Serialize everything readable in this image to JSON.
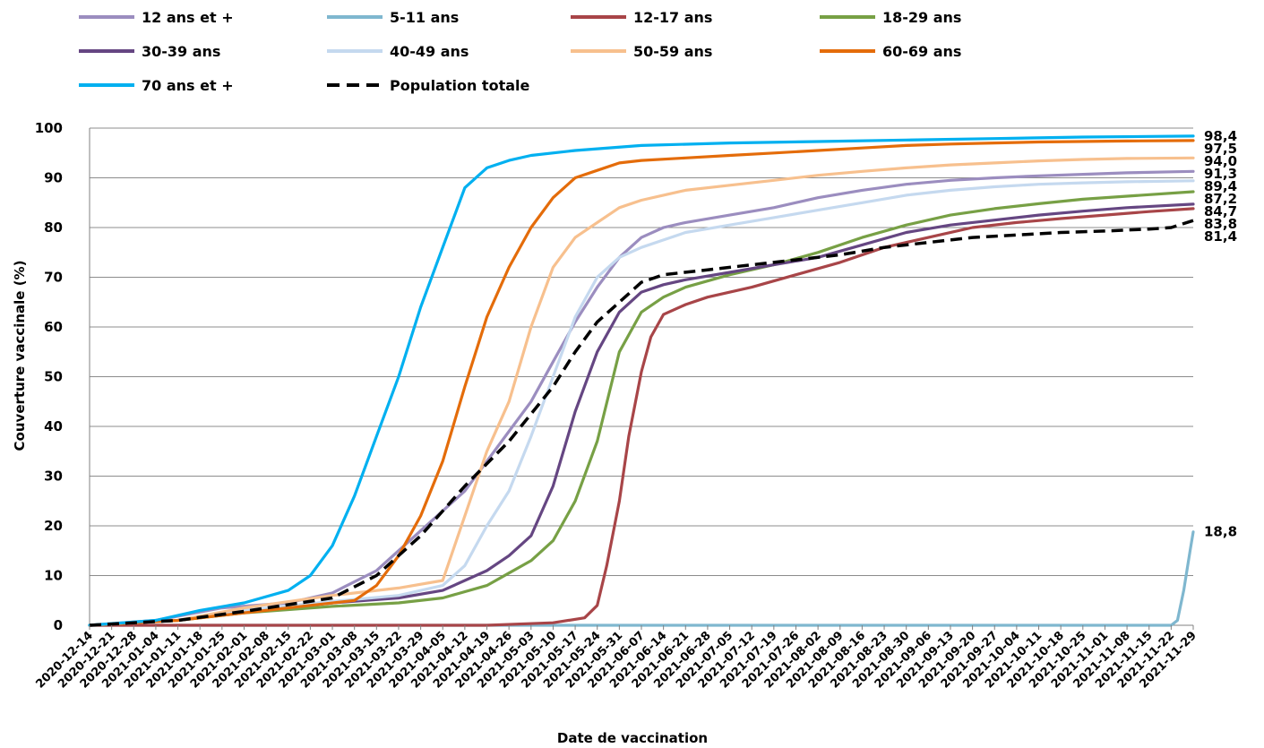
{
  "chart_data": {
    "type": "line",
    "title": "",
    "xlabel": "Date de vaccination",
    "ylabel": "Couverture vaccinale  (%)",
    "ylim": [
      0,
      100
    ],
    "y_ticks": [
      "0",
      "10",
      "20",
      "30",
      "40",
      "50",
      "60",
      "70",
      "80",
      "90",
      "100"
    ],
    "grid": "horizontal",
    "legend_position": "top",
    "x_ticks": [
      "2020-12-14",
      "2020-12-21",
      "2020-12-28",
      "2021-01-04",
      "2021-01-11",
      "2021-01-18",
      "2021-01-25",
      "2021-02-01",
      "2021-02-08",
      "2021-02-15",
      "2021-02-22",
      "2021-03-01",
      "2021-03-08",
      "2021-03-15",
      "2021-03-22",
      "2021-03-29",
      "2021-04-05",
      "2021-04-12",
      "2021-04-19",
      "2021-04-26",
      "2021-05-03",
      "2021-05-10",
      "2021-05-17",
      "2021-05-24",
      "2021-05-31",
      "2021-06-07",
      "2021-06-14",
      "2021-06-21",
      "2021-06-28",
      "2021-07-05",
      "2021-07-12",
      "2021-07-19",
      "2021-07-26",
      "2021-08-02",
      "2021-08-09",
      "2021-08-16",
      "2021-08-23",
      "2021-08-30",
      "2021-09-06",
      "2021-09-13",
      "2021-09-20",
      "2021-09-27",
      "2021-10-04",
      "2021-10-11",
      "2021-10-18",
      "2021-10-25",
      "2021-11-01",
      "2021-11-08",
      "2021-11-15",
      "2021-11-22",
      "2021-11-29"
    ],
    "series": [
      {
        "name": "12 ans et +",
        "color": "#9B8DBF",
        "dash": false,
        "end_label": "91,3",
        "x": [
          "2020-12-14",
          "2021-01-04",
          "2021-01-25",
          "2021-02-15",
          "2021-03-01",
          "2021-03-15",
          "2021-03-29",
          "2021-04-12",
          "2021-04-19",
          "2021-04-26",
          "2021-05-03",
          "2021-05-10",
          "2021-05-17",
          "2021-05-24",
          "2021-05-31",
          "2021-06-07",
          "2021-06-14",
          "2021-06-21",
          "2021-07-05",
          "2021-07-19",
          "2021-08-02",
          "2021-08-16",
          "2021-08-30",
          "2021-09-13",
          "2021-09-27",
          "2021-10-11",
          "2021-10-25",
          "2021-11-08",
          "2021-11-22",
          "2021-11-29"
        ],
        "y": [
          0,
          1,
          3.5,
          4.5,
          6.5,
          11,
          19,
          27,
          33,
          39,
          45,
          53,
          61,
          68,
          74,
          78,
          80,
          81,
          82.5,
          84,
          86,
          87.5,
          88.7,
          89.5,
          90,
          90.4,
          90.7,
          91,
          91.2,
          91.3
        ]
      },
      {
        "name": "5-11 ans",
        "color": "#7FB7CF",
        "dash": false,
        "end_label": "18,8",
        "x": [
          "2020-12-14",
          "2021-11-22",
          "2021-11-24",
          "2021-11-26",
          "2021-11-28",
          "2021-11-29"
        ],
        "y": [
          0,
          0,
          1,
          7,
          15,
          18.8
        ]
      },
      {
        "name": "12-17 ans",
        "color": "#A84548",
        "dash": false,
        "end_label": "83,8",
        "x": [
          "2020-12-14",
          "2021-04-19",
          "2021-05-10",
          "2021-05-20",
          "2021-05-24",
          "2021-05-27",
          "2021-05-31",
          "2021-06-03",
          "2021-06-07",
          "2021-06-10",
          "2021-06-14",
          "2021-06-21",
          "2021-06-28",
          "2021-07-12",
          "2021-07-26",
          "2021-08-09",
          "2021-08-23",
          "2021-09-06",
          "2021-09-20",
          "2021-10-04",
          "2021-10-18",
          "2021-11-01",
          "2021-11-15",
          "2021-11-29"
        ],
        "y": [
          0,
          0,
          0.5,
          1.5,
          4,
          12,
          25,
          38,
          51,
          58,
          62.5,
          64.5,
          66,
          68,
          70.5,
          73,
          76,
          78,
          80,
          81,
          81.8,
          82.5,
          83.2,
          83.8
        ]
      },
      {
        "name": "18-29 ans",
        "color": "#77A045",
        "dash": false,
        "end_label": "87,2",
        "x": [
          "2020-12-14",
          "2021-01-11",
          "2021-02-01",
          "2021-03-01",
          "2021-03-22",
          "2021-04-05",
          "2021-04-19",
          "2021-04-26",
          "2021-05-03",
          "2021-05-10",
          "2021-05-17",
          "2021-05-24",
          "2021-05-31",
          "2021-06-07",
          "2021-06-14",
          "2021-06-21",
          "2021-07-05",
          "2021-07-19",
          "2021-08-02",
          "2021-08-16",
          "2021-08-30",
          "2021-09-13",
          "2021-09-27",
          "2021-10-11",
          "2021-10-25",
          "2021-11-08",
          "2021-11-29"
        ],
        "y": [
          0,
          1,
          2.5,
          3.8,
          4.5,
          5.5,
          8,
          10.5,
          13,
          17,
          25,
          37,
          55,
          63,
          66,
          68,
          70.5,
          72.5,
          75,
          78,
          80.5,
          82.5,
          83.8,
          84.8,
          85.7,
          86.3,
          87.2
        ]
      },
      {
        "name": "30-39 ans",
        "color": "#654682",
        "dash": false,
        "end_label": "84,7",
        "x": [
          "2020-12-14",
          "2021-01-11",
          "2021-02-01",
          "2021-03-01",
          "2021-03-22",
          "2021-04-05",
          "2021-04-19",
          "2021-04-26",
          "2021-05-03",
          "2021-05-10",
          "2021-05-17",
          "2021-05-24",
          "2021-05-31",
          "2021-06-07",
          "2021-06-14",
          "2021-06-21",
          "2021-07-05",
          "2021-07-19",
          "2021-08-02",
          "2021-08-16",
          "2021-08-30",
          "2021-09-13",
          "2021-09-27",
          "2021-10-11",
          "2021-10-25",
          "2021-11-08",
          "2021-11-29"
        ],
        "y": [
          0,
          1,
          2.8,
          4.5,
          5.5,
          7,
          11,
          14,
          18,
          28,
          43,
          55,
          63,
          67,
          68.5,
          69.5,
          71,
          72.5,
          74,
          76.5,
          79,
          80.5,
          81.5,
          82.5,
          83.3,
          84,
          84.7
        ]
      },
      {
        "name": "40-49 ans",
        "color": "#C5D9EF",
        "dash": false,
        "end_label": "89,4",
        "x": [
          "2020-12-14",
          "2021-01-11",
          "2021-02-01",
          "2021-03-01",
          "2021-03-22",
          "2021-04-05",
          "2021-04-12",
          "2021-04-19",
          "2021-04-26",
          "2021-05-03",
          "2021-05-10",
          "2021-05-17",
          "2021-05-24",
          "2021-05-31",
          "2021-06-07",
          "2021-06-14",
          "2021-06-21",
          "2021-07-05",
          "2021-07-19",
          "2021-08-02",
          "2021-08-16",
          "2021-08-30",
          "2021-09-13",
          "2021-09-27",
          "2021-10-11",
          "2021-10-25",
          "2021-11-08",
          "2021-11-29"
        ],
        "y": [
          0,
          1,
          3,
          4.8,
          6,
          8,
          12,
          20,
          27,
          38,
          50,
          62,
          70,
          74,
          76,
          77.5,
          79,
          80.5,
          82,
          83.5,
          85,
          86.5,
          87.5,
          88.2,
          88.7,
          89,
          89.2,
          89.4
        ]
      },
      {
        "name": "50-59 ans",
        "color": "#F7C08E",
        "dash": false,
        "end_label": "94,0",
        "x": [
          "2020-12-14",
          "2021-01-11",
          "2021-02-01",
          "2021-03-01",
          "2021-03-22",
          "2021-04-05",
          "2021-04-12",
          "2021-04-19",
          "2021-04-26",
          "2021-05-03",
          "2021-05-10",
          "2021-05-17",
          "2021-05-24",
          "2021-05-31",
          "2021-06-07",
          "2021-06-14",
          "2021-06-21",
          "2021-07-05",
          "2021-07-19",
          "2021-08-02",
          "2021-08-16",
          "2021-08-30",
          "2021-09-13",
          "2021-09-27",
          "2021-10-11",
          "2021-10-25",
          "2021-11-08",
          "2021-11-29"
        ],
        "y": [
          0,
          1,
          3.5,
          6,
          7.5,
          9,
          22,
          35,
          45,
          60,
          72,
          78,
          81,
          84,
          85.5,
          86.5,
          87.5,
          88.5,
          89.5,
          90.5,
          91.3,
          92,
          92.6,
          93,
          93.4,
          93.7,
          93.9,
          94.0
        ]
      },
      {
        "name": "60-69 ans",
        "color": "#E46C0A",
        "dash": false,
        "end_label": "97,5",
        "x": [
          "2020-12-14",
          "2021-01-11",
          "2021-02-01",
          "2021-02-22",
          "2021-03-08",
          "2021-03-15",
          "2021-03-22",
          "2021-03-29",
          "2021-04-05",
          "2021-04-12",
          "2021-04-19",
          "2021-04-26",
          "2021-05-03",
          "2021-05-10",
          "2021-05-17",
          "2021-05-24",
          "2021-05-31",
          "2021-06-07",
          "2021-06-21",
          "2021-07-05",
          "2021-07-19",
          "2021-08-02",
          "2021-08-16",
          "2021-08-30",
          "2021-09-13",
          "2021-09-27",
          "2021-10-11",
          "2021-11-08",
          "2021-11-29"
        ],
        "y": [
          0,
          1,
          2.5,
          4,
          5,
          8,
          14,
          22,
          33,
          48,
          62,
          72,
          80,
          86,
          90,
          91.5,
          93,
          93.5,
          94,
          94.5,
          95,
          95.5,
          96,
          96.5,
          96.8,
          97,
          97.2,
          97.4,
          97.5
        ]
      },
      {
        "name": "70 ans et +",
        "color": "#00B0F0",
        "dash": false,
        "end_label": "98,4",
        "x": [
          "2020-12-14",
          "2021-01-04",
          "2021-01-18",
          "2021-02-01",
          "2021-02-15",
          "2021-02-22",
          "2021-03-01",
          "2021-03-08",
          "2021-03-15",
          "2021-03-22",
          "2021-03-29",
          "2021-04-05",
          "2021-04-12",
          "2021-04-19",
          "2021-04-26",
          "2021-05-03",
          "2021-05-17",
          "2021-06-07",
          "2021-07-05",
          "2021-08-02",
          "2021-08-30",
          "2021-09-27",
          "2021-10-25",
          "2021-11-29"
        ],
        "y": [
          0,
          1,
          3,
          4.5,
          7,
          10,
          16,
          26,
          38,
          50,
          64,
          76,
          88,
          92,
          93.5,
          94.5,
          95.5,
          96.5,
          97,
          97.3,
          97.6,
          97.9,
          98.2,
          98.4
        ]
      },
      {
        "name": "Population totale",
        "color": "#000000",
        "dash": true,
        "end_label": "81,4",
        "x": [
          "2020-12-14",
          "2021-01-11",
          "2021-02-01",
          "2021-03-01",
          "2021-03-15",
          "2021-03-29",
          "2021-04-12",
          "2021-04-26",
          "2021-05-10",
          "2021-05-17",
          "2021-05-24",
          "2021-05-31",
          "2021-06-07",
          "2021-06-14",
          "2021-06-28",
          "2021-07-12",
          "2021-07-26",
          "2021-08-09",
          "2021-08-23",
          "2021-09-06",
          "2021-09-20",
          "2021-10-04",
          "2021-10-18",
          "2021-11-01",
          "2021-11-15",
          "2021-11-22",
          "2021-11-29"
        ],
        "y": [
          0,
          1,
          2.8,
          5.5,
          10,
          18,
          28,
          37,
          48,
          55,
          61,
          65,
          69,
          70.5,
          71.5,
          72.5,
          73.5,
          74.5,
          76,
          77,
          78,
          78.5,
          79,
          79.3,
          79.7,
          80,
          81.4
        ]
      }
    ]
  }
}
